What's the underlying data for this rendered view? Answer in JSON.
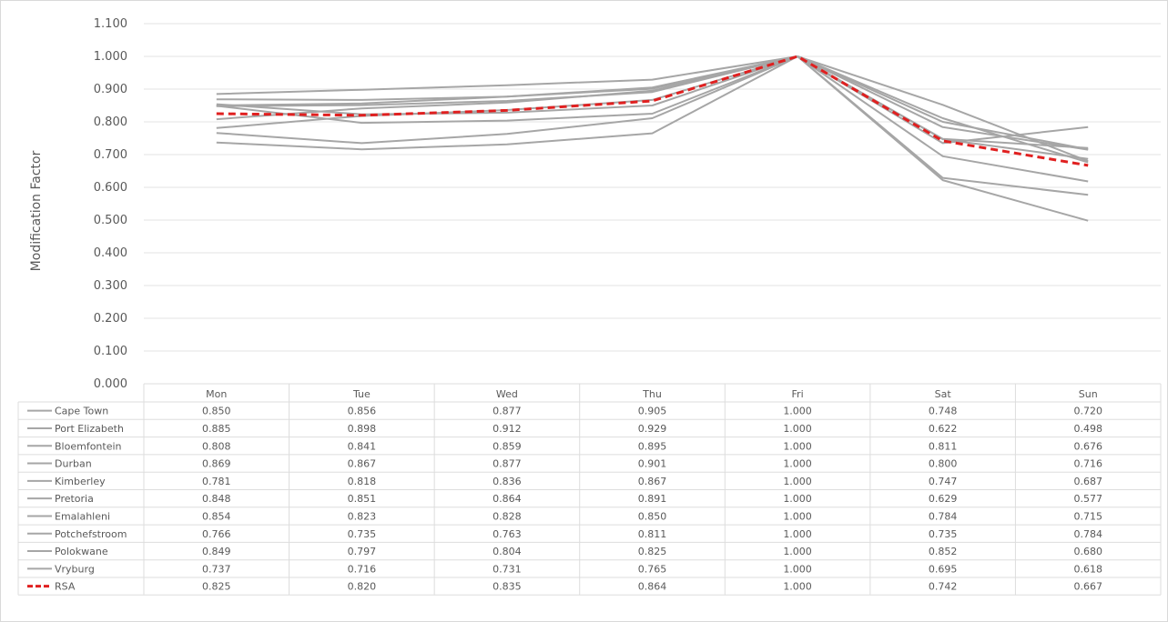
{
  "chart_data": {
    "type": "line",
    "title": "",
    "xlabel": "",
    "ylabel": "Modification Factor",
    "ylim": [
      0,
      1.1
    ],
    "y_ticks": [
      "0.000",
      "0.100",
      "0.200",
      "0.300",
      "0.400",
      "0.500",
      "0.600",
      "0.700",
      "0.800",
      "0.900",
      "1.000",
      "1.100"
    ],
    "grid": true,
    "legend": "data-table-below",
    "categories": [
      "Mon",
      "Tue",
      "Wed",
      "Thu",
      "Fri",
      "Sat",
      "Sun"
    ],
    "series": [
      {
        "name": "Cape Town",
        "values": [
          0.85,
          0.856,
          0.877,
          0.905,
          1.0,
          0.748,
          0.72
        ],
        "labels": [
          "0.850",
          "0.856",
          "0.877",
          "0.905",
          "1.000",
          "0.748",
          "0.720"
        ],
        "color": "#a6a6a6",
        "dashed": false
      },
      {
        "name": "Port Elizabeth",
        "values": [
          0.885,
          0.898,
          0.912,
          0.929,
          1.0,
          0.622,
          0.498
        ],
        "labels": [
          "0.885",
          "0.898",
          "0.912",
          "0.929",
          "1.000",
          "0.622",
          "0.498"
        ],
        "color": "#a6a6a6",
        "dashed": false
      },
      {
        "name": "Bloemfontein",
        "values": [
          0.808,
          0.841,
          0.859,
          0.895,
          1.0,
          0.811,
          0.676
        ],
        "labels": [
          "0.808",
          "0.841",
          "0.859",
          "0.895",
          "1.000",
          "0.811",
          "0.676"
        ],
        "color": "#a6a6a6",
        "dashed": false
      },
      {
        "name": "Durban",
        "values": [
          0.869,
          0.867,
          0.877,
          0.901,
          1.0,
          0.8,
          0.716
        ],
        "labels": [
          "0.869",
          "0.867",
          "0.877",
          "0.901",
          "1.000",
          "0.800",
          "0.716"
        ],
        "color": "#a6a6a6",
        "dashed": false
      },
      {
        "name": "Kimberley",
        "values": [
          0.781,
          0.818,
          0.836,
          0.867,
          1.0,
          0.747,
          0.687
        ],
        "labels": [
          "0.781",
          "0.818",
          "0.836",
          "0.867",
          "1.000",
          "0.747",
          "0.687"
        ],
        "color": "#a6a6a6",
        "dashed": false
      },
      {
        "name": "Pretoria",
        "values": [
          0.848,
          0.851,
          0.864,
          0.891,
          1.0,
          0.629,
          0.577
        ],
        "labels": [
          "0.848",
          "0.851",
          "0.864",
          "0.891",
          "1.000",
          "0.629",
          "0.577"
        ],
        "color": "#a6a6a6",
        "dashed": false
      },
      {
        "name": "Emalahleni",
        "values": [
          0.854,
          0.823,
          0.828,
          0.85,
          1.0,
          0.784,
          0.715
        ],
        "labels": [
          "0.854",
          "0.823",
          "0.828",
          "0.850",
          "1.000",
          "0.784",
          "0.715"
        ],
        "color": "#a6a6a6",
        "dashed": false
      },
      {
        "name": "Potchefstroom",
        "values": [
          0.766,
          0.735,
          0.763,
          0.811,
          1.0,
          0.735,
          0.784
        ],
        "labels": [
          "0.766",
          "0.735",
          "0.763",
          "0.811",
          "1.000",
          "0.735",
          "0.784"
        ],
        "color": "#a6a6a6",
        "dashed": false
      },
      {
        "name": "Polokwane",
        "values": [
          0.849,
          0.797,
          0.804,
          0.825,
          1.0,
          0.852,
          0.68
        ],
        "labels": [
          "0.849",
          "0.797",
          "0.804",
          "0.825",
          "1.000",
          "0.852",
          "0.680"
        ],
        "color": "#a6a6a6",
        "dashed": false
      },
      {
        "name": "Vryburg",
        "values": [
          0.737,
          0.716,
          0.731,
          0.765,
          1.0,
          0.695,
          0.618
        ],
        "labels": [
          "0.737",
          "0.716",
          "0.731",
          "0.765",
          "1.000",
          "0.695",
          "0.618"
        ],
        "color": "#a6a6a6",
        "dashed": false
      },
      {
        "name": "RSA",
        "values": [
          0.825,
          0.82,
          0.835,
          0.864,
          1.0,
          0.742,
          0.667
        ],
        "labels": [
          "0.825",
          "0.820",
          "0.835",
          "0.864",
          "1.000",
          "0.742",
          "0.667"
        ],
        "color": "#e02020",
        "dashed": true
      }
    ]
  }
}
